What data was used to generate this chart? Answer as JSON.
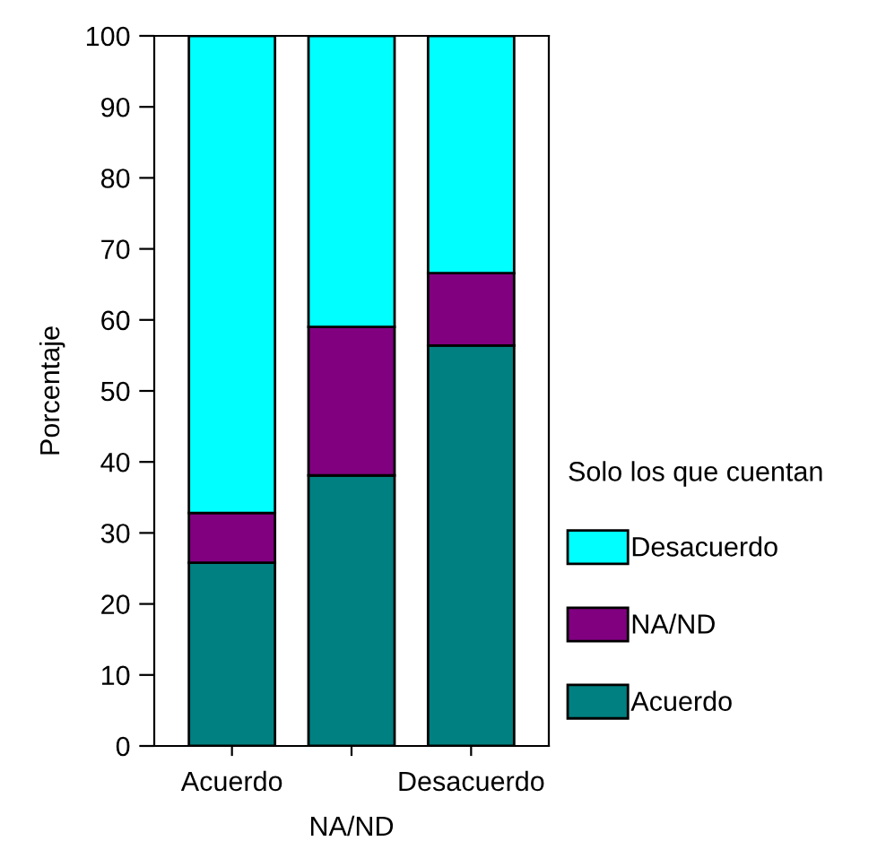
{
  "chart_data": {
    "type": "bar",
    "stacked": true,
    "ylabel": "Porcentaje",
    "legend_title": "Solo los que cuentan",
    "categories": [
      "Acuerdo",
      "NA/ND",
      "Desacuerdo"
    ],
    "series": [
      {
        "name": "Acuerdo",
        "color": "#008080",
        "values": [
          25.8,
          38.1,
          56.4
        ]
      },
      {
        "name": "NA/ND",
        "color": "#800080",
        "values": [
          7.0,
          20.9,
          10.2
        ]
      },
      {
        "name": "Desacuerdo",
        "color": "#00ffff",
        "values": [
          67.2,
          41.0,
          33.4
        ]
      }
    ],
    "ylim": [
      0,
      100
    ],
    "yticks": [
      0,
      10,
      20,
      30,
      40,
      50,
      60,
      70,
      80,
      90,
      100
    ],
    "grid": false,
    "legend": "right"
  }
}
